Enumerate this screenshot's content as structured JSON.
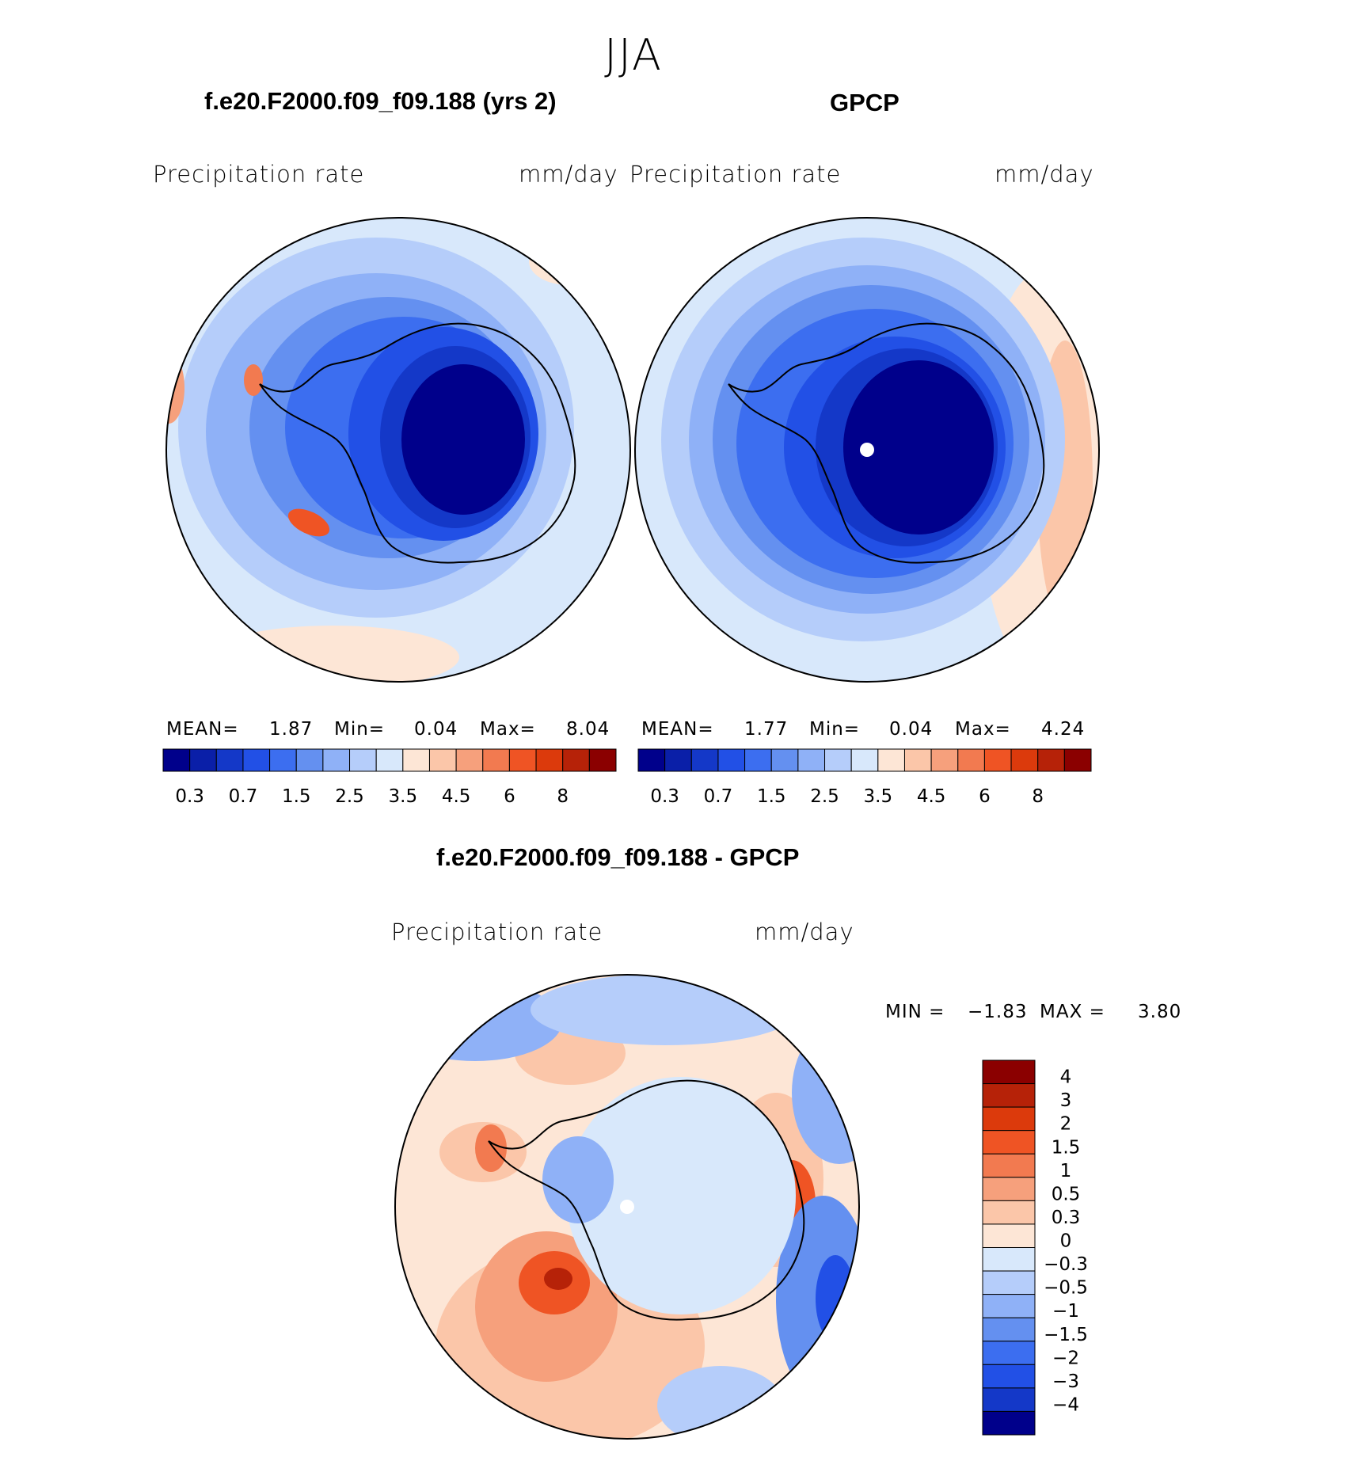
{
  "figure": {
    "season": "JJA",
    "diff_title": "f.e20.F2000.f09_f09.188 - GPCP",
    "diff_min_label": "MIN =",
    "diff_min": "−1.83",
    "diff_max_label": "MAX =",
    "diff_max": "3.80"
  },
  "panels": [
    {
      "title": "f.e20.F2000.f09_f09.188 (yrs 2)",
      "variable": "Precipitation rate",
      "units": "mm/day",
      "mean_label": "MEAN=",
      "mean": "1.87",
      "min_label": "Min=",
      "min": "0.04",
      "max_label": "Max=",
      "max": "8.04"
    },
    {
      "title": "GPCP",
      "variable": "Precipitation rate",
      "units": "mm/day",
      "mean_label": "MEAN=",
      "mean": "1.77",
      "min_label": "Min=",
      "min": "0.04",
      "max_label": "Max=",
      "max": "4.24"
    },
    {
      "title": "",
      "variable": "Precipitation rate",
      "units": "mm/day"
    }
  ],
  "chart_data": [
    {
      "type": "heatmap",
      "title": "f.e20.F2000.f09_f09.188 (yrs 2)",
      "projection": "south polar stereographic",
      "variable": "Precipitation rate",
      "units": "mm/day",
      "statistics": {
        "mean": 1.87,
        "min": 0.04,
        "max": 8.04
      },
      "contour_levels": [
        0.2,
        0.3,
        0.5,
        0.7,
        1,
        1.5,
        2,
        2.5,
        3,
        3.5,
        4,
        4.5,
        5,
        6,
        7,
        8
      ],
      "colorbar_tick_labels": [
        "0.3",
        "0.7",
        "1.5",
        "2.5",
        "3.5",
        "4.5",
        "6",
        "8"
      ],
      "colors": [
        "#00008b",
        "#0a1fa8",
        "#1438c8",
        "#2250e6",
        "#3c6ef0",
        "#6490f0",
        "#8fb1f7",
        "#b5cdfa",
        "#d8e8fb",
        "#fde6d6",
        "#fbc6a9",
        "#f6a07c",
        "#f27a50",
        "#ef5424",
        "#dc3a0c",
        "#b62208",
        "#8b0000"
      ]
    },
    {
      "type": "heatmap",
      "title": "GPCP",
      "projection": "south polar stereographic",
      "variable": "Precipitation rate",
      "units": "mm/day",
      "statistics": {
        "mean": 1.77,
        "min": 0.04,
        "max": 4.24
      },
      "contour_levels": [
        0.2,
        0.3,
        0.5,
        0.7,
        1,
        1.5,
        2,
        2.5,
        3,
        3.5,
        4,
        4.5,
        5,
        6,
        7,
        8
      ],
      "colorbar_tick_labels": [
        "0.3",
        "0.7",
        "1.5",
        "2.5",
        "3.5",
        "4.5",
        "6",
        "8"
      ],
      "colors": [
        "#00008b",
        "#0a1fa8",
        "#1438c8",
        "#2250e6",
        "#3c6ef0",
        "#6490f0",
        "#8fb1f7",
        "#b5cdfa",
        "#d8e8fb",
        "#fde6d6",
        "#fbc6a9",
        "#f6a07c",
        "#f27a50",
        "#ef5424",
        "#dc3a0c",
        "#b62208",
        "#8b0000"
      ]
    },
    {
      "type": "heatmap",
      "title": "f.e20.F2000.f09_f09.188 - GPCP",
      "projection": "south polar stereographic",
      "variable": "Precipitation rate",
      "units": "mm/day",
      "statistics": {
        "min": -1.83,
        "max": 3.8
      },
      "contour_levels": [
        -4,
        -3,
        -2,
        -1.5,
        -1,
        -0.5,
        -0.3,
        0,
        0.3,
        0.5,
        1,
        1.5,
        2,
        3,
        4
      ],
      "colorbar_tick_labels": [
        "4",
        "3",
        "2",
        "1.5",
        "1",
        "0.5",
        "0.3",
        "0",
        "−0.3",
        "−0.5",
        "−1",
        "−1.5",
        "−2",
        "−3",
        "−4"
      ],
      "colors_top_to_bottom": [
        "#8b0000",
        "#b62208",
        "#dc3a0c",
        "#ef5424",
        "#f27a50",
        "#f6a07c",
        "#fbc6a9",
        "#fde6d6",
        "#d8e8fb",
        "#b5cdfa",
        "#8fb1f7",
        "#6490f0",
        "#3c6ef0",
        "#2250e6",
        "#1438c8",
        "#00008b"
      ]
    }
  ]
}
